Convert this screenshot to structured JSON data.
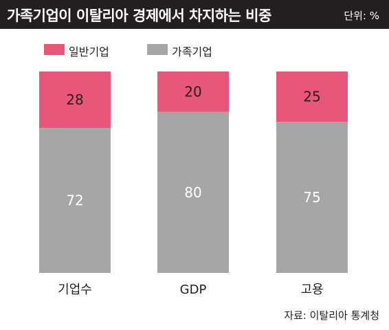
{
  "header": {
    "title": "가족기업이 이탈리아 경제에서 차지하는 비중",
    "unit": "단위: %"
  },
  "colors": {
    "general": "#e8577a",
    "family": "#a6a6a6",
    "header_bg": "#231f20"
  },
  "chart_data": {
    "type": "bar",
    "stacked": true,
    "categories": [
      "기업수",
      "GDP",
      "고용"
    ],
    "series": [
      {
        "name": "가족기업",
        "values": [
          72,
          80,
          75
        ]
      },
      {
        "name": "일반기업",
        "values": [
          28,
          20,
          25
        ]
      }
    ],
    "ylim": [
      0,
      100
    ],
    "grid": false,
    "legend": "top-left"
  },
  "legend": {
    "general_label": "일반기업",
    "family_label": "가족기업"
  },
  "footer": {
    "source": "자료: 이탈리아 통계청"
  }
}
